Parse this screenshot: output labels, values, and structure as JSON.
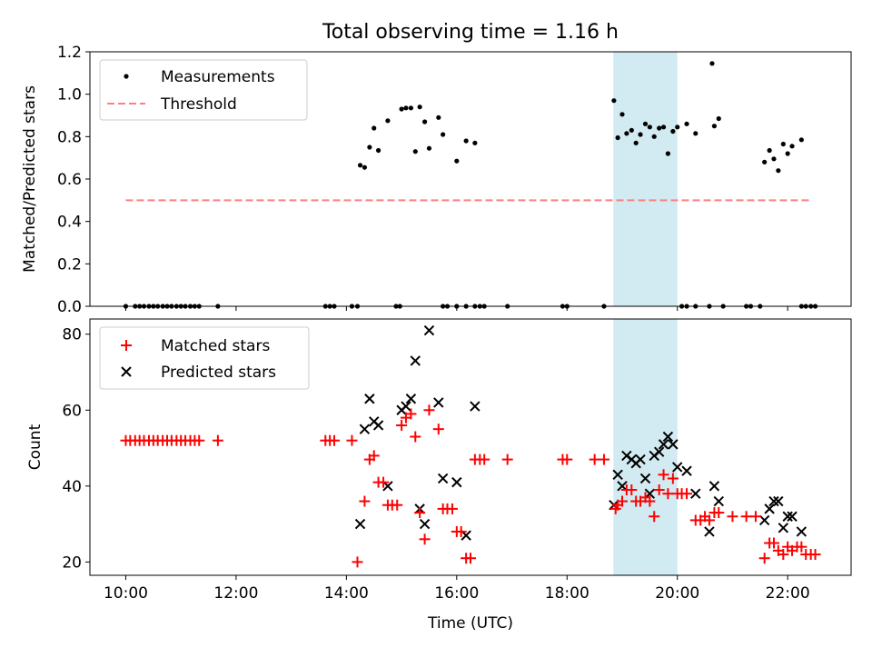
{
  "chart_data": [
    {
      "type": "scatter",
      "title": "Total observing time = 1.16 h",
      "xlabel": "",
      "ylabel": "Matched/Predicted stars",
      "xlim": [
        9.35,
        23.15
      ],
      "ylim": [
        0,
        1.2
      ],
      "yticks": [
        "0.0",
        "0.2",
        "0.4",
        "0.6",
        "0.8",
        "1.0",
        "1.2"
      ],
      "ytick_values": [
        0,
        0.2,
        0.4,
        0.6,
        0.8,
        1.0,
        1.2
      ],
      "xtick_values": [
        10,
        12,
        14,
        16,
        18,
        20,
        22
      ],
      "shaded_span": [
        18.84,
        20.0
      ],
      "shade_color": "#add8e6",
      "legend": {
        "position": "upper-left",
        "entries": [
          "Measurements",
          "Threshold"
        ]
      },
      "series": [
        {
          "name": "Measurements",
          "color": "#000000",
          "marker": "dot",
          "points": [
            [
              10.0,
              0
            ],
            [
              10.17,
              0
            ],
            [
              10.25,
              0
            ],
            [
              10.33,
              0
            ],
            [
              10.42,
              0
            ],
            [
              10.5,
              0
            ],
            [
              10.58,
              0
            ],
            [
              10.67,
              0
            ],
            [
              10.75,
              0
            ],
            [
              10.83,
              0
            ],
            [
              10.92,
              0
            ],
            [
              11.0,
              0
            ],
            [
              11.08,
              0
            ],
            [
              11.17,
              0
            ],
            [
              11.25,
              0
            ],
            [
              11.33,
              0
            ],
            [
              11.67,
              0
            ],
            [
              13.62,
              0
            ],
            [
              13.7,
              0
            ],
            [
              13.78,
              0
            ],
            [
              14.1,
              0
            ],
            [
              14.2,
              0
            ],
            [
              14.25,
              0.665
            ],
            [
              14.33,
              0.655
            ],
            [
              14.42,
              0.75
            ],
            [
              14.5,
              0.84
            ],
            [
              14.58,
              0.735
            ],
            [
              14.75,
              0.875
            ],
            [
              14.9,
              0
            ],
            [
              14.97,
              0
            ],
            [
              15.0,
              0.93
            ],
            [
              15.08,
              0.935
            ],
            [
              15.17,
              0.935
            ],
            [
              15.25,
              0.73
            ],
            [
              15.33,
              0.94
            ],
            [
              15.42,
              0.87
            ],
            [
              15.5,
              0.745
            ],
            [
              15.67,
              0.89
            ],
            [
              15.75,
              0.81
            ],
            [
              15.75,
              0
            ],
            [
              15.83,
              0
            ],
            [
              16.0,
              0.685
            ],
            [
              16.0,
              0
            ],
            [
              16.17,
              0.78
            ],
            [
              16.17,
              0
            ],
            [
              16.33,
              0.77
            ],
            [
              16.33,
              0
            ],
            [
              16.42,
              0
            ],
            [
              16.5,
              0
            ],
            [
              16.92,
              0
            ],
            [
              17.92,
              0
            ],
            [
              18.0,
              0
            ],
            [
              18.67,
              0
            ],
            [
              18.85,
              0.97
            ],
            [
              18.92,
              0.795
            ],
            [
              19.0,
              0.905
            ],
            [
              19.08,
              0.815
            ],
            [
              19.17,
              0.83
            ],
            [
              19.25,
              0.77
            ],
            [
              19.33,
              0.81
            ],
            [
              19.42,
              0.86
            ],
            [
              19.5,
              0.845
            ],
            [
              19.58,
              0.8
            ],
            [
              19.67,
              0.84
            ],
            [
              19.75,
              0.845
            ],
            [
              19.83,
              0.72
            ],
            [
              19.92,
              0.825
            ],
            [
              20.0,
              0.845
            ],
            [
              20.08,
              0
            ],
            [
              20.17,
              0.86
            ],
            [
              20.17,
              0
            ],
            [
              20.33,
              0.815
            ],
            [
              20.33,
              0
            ],
            [
              20.58,
              0
            ],
            [
              20.63,
              1.145
            ],
            [
              20.67,
              0.85
            ],
            [
              20.75,
              0.885
            ],
            [
              20.83,
              0
            ],
            [
              21.25,
              0
            ],
            [
              21.33,
              0
            ],
            [
              21.5,
              0
            ],
            [
              21.58,
              0.68
            ],
            [
              21.67,
              0.735
            ],
            [
              21.75,
              0.695
            ],
            [
              21.83,
              0.64
            ],
            [
              21.92,
              0.765
            ],
            [
              22.0,
              0.72
            ],
            [
              22.08,
              0.755
            ],
            [
              22.25,
              0.785
            ],
            [
              22.25,
              0
            ],
            [
              22.33,
              0
            ],
            [
              22.42,
              0
            ],
            [
              22.5,
              0
            ]
          ]
        },
        {
          "name": "Threshold",
          "color": "#ff7f7f",
          "marker": "dashed-line",
          "points": [
            [
              10.0,
              0.5
            ],
            [
              22.42,
              0.5
            ]
          ]
        }
      ]
    },
    {
      "type": "scatter",
      "title": "",
      "xlabel": "Time (UTC)",
      "ylabel": "Count",
      "xlim": [
        9.35,
        23.15
      ],
      "ylim": [
        16.5,
        84
      ],
      "yticks": [
        "20",
        "40",
        "60",
        "80"
      ],
      "ytick_values": [
        20,
        40,
        60,
        80
      ],
      "xticks": [
        "10:00",
        "12:00",
        "14:00",
        "16:00",
        "18:00",
        "20:00",
        "22:00"
      ],
      "xtick_values": [
        10,
        12,
        14,
        16,
        18,
        20,
        22
      ],
      "shaded_span": [
        18.84,
        20.0
      ],
      "shade_color": "#add8e6",
      "legend": {
        "position": "upper-left",
        "entries": [
          "Matched stars",
          "Predicted stars"
        ]
      },
      "series": [
        {
          "name": "Matched stars",
          "color": "#ff0000",
          "marker": "plus",
          "points": [
            [
              10.0,
              52
            ],
            [
              10.08,
              52
            ],
            [
              10.17,
              52
            ],
            [
              10.25,
              52
            ],
            [
              10.33,
              52
            ],
            [
              10.42,
              52
            ],
            [
              10.5,
              52
            ],
            [
              10.58,
              52
            ],
            [
              10.67,
              52
            ],
            [
              10.75,
              52
            ],
            [
              10.83,
              52
            ],
            [
              10.92,
              52
            ],
            [
              11.0,
              52
            ],
            [
              11.08,
              52
            ],
            [
              11.17,
              52
            ],
            [
              11.25,
              52
            ],
            [
              11.33,
              52
            ],
            [
              11.67,
              52
            ],
            [
              13.62,
              52
            ],
            [
              13.7,
              52
            ],
            [
              13.78,
              52
            ],
            [
              14.1,
              52
            ],
            [
              14.2,
              20
            ],
            [
              14.33,
              36
            ],
            [
              14.42,
              47
            ],
            [
              14.5,
              48
            ],
            [
              14.58,
              41
            ],
            [
              14.67,
              41
            ],
            [
              14.75,
              35
            ],
            [
              14.83,
              35
            ],
            [
              14.92,
              35
            ],
            [
              15.0,
              56
            ],
            [
              15.08,
              58
            ],
            [
              15.17,
              59
            ],
            [
              15.25,
              53
            ],
            [
              15.33,
              33
            ],
            [
              15.42,
              26
            ],
            [
              15.5,
              60
            ],
            [
              15.67,
              55
            ],
            [
              15.75,
              34
            ],
            [
              15.83,
              34
            ],
            [
              15.92,
              34
            ],
            [
              16.0,
              28
            ],
            [
              16.08,
              28
            ],
            [
              16.17,
              21
            ],
            [
              16.25,
              21
            ],
            [
              16.33,
              47
            ],
            [
              16.42,
              47
            ],
            [
              16.5,
              47
            ],
            [
              16.92,
              47
            ],
            [
              17.92,
              47
            ],
            [
              18.0,
              47
            ],
            [
              18.5,
              47
            ],
            [
              18.67,
              47
            ],
            [
              18.88,
              34
            ],
            [
              18.92,
              35
            ],
            [
              19.0,
              36
            ],
            [
              19.08,
              39
            ],
            [
              19.17,
              39
            ],
            [
              19.25,
              36
            ],
            [
              19.33,
              36
            ],
            [
              19.42,
              37
            ],
            [
              19.5,
              36
            ],
            [
              19.58,
              32
            ],
            [
              19.67,
              39
            ],
            [
              19.75,
              43
            ],
            [
              19.83,
              38
            ],
            [
              19.92,
              42
            ],
            [
              20.0,
              38
            ],
            [
              20.08,
              38
            ],
            [
              20.17,
              38
            ],
            [
              20.33,
              31
            ],
            [
              20.42,
              31
            ],
            [
              20.5,
              32
            ],
            [
              20.58,
              31
            ],
            [
              20.67,
              33
            ],
            [
              20.75,
              33
            ],
            [
              21.0,
              32
            ],
            [
              21.25,
              32
            ],
            [
              21.42,
              32
            ],
            [
              21.58,
              21
            ],
            [
              21.67,
              25
            ],
            [
              21.75,
              25
            ],
            [
              21.83,
              23
            ],
            [
              21.92,
              22
            ],
            [
              22.0,
              24
            ],
            [
              22.08,
              23
            ],
            [
              22.17,
              24
            ],
            [
              22.25,
              24
            ],
            [
              22.33,
              22
            ],
            [
              22.42,
              22
            ],
            [
              22.5,
              22
            ]
          ]
        },
        {
          "name": "Predicted stars",
          "color": "#000000",
          "marker": "x",
          "points": [
            [
              14.25,
              30
            ],
            [
              14.33,
              55
            ],
            [
              14.42,
              63
            ],
            [
              14.5,
              57
            ],
            [
              14.58,
              56
            ],
            [
              14.75,
              40
            ],
            [
              15.0,
              60
            ],
            [
              15.08,
              61
            ],
            [
              15.17,
              63
            ],
            [
              15.25,
              73
            ],
            [
              15.33,
              34
            ],
            [
              15.42,
              30
            ],
            [
              15.5,
              81
            ],
            [
              15.67,
              62
            ],
            [
              15.75,
              42
            ],
            [
              16.0,
              41
            ],
            [
              16.17,
              27
            ],
            [
              16.33,
              61
            ],
            [
              18.85,
              35
            ],
            [
              18.92,
              43
            ],
            [
              19.0,
              40
            ],
            [
              19.08,
              48
            ],
            [
              19.17,
              47
            ],
            [
              19.25,
              46
            ],
            [
              19.33,
              47
            ],
            [
              19.42,
              42
            ],
            [
              19.5,
              38
            ],
            [
              19.58,
              48
            ],
            [
              19.67,
              49
            ],
            [
              19.75,
              51
            ],
            [
              19.83,
              53
            ],
            [
              19.92,
              51
            ],
            [
              20.0,
              45
            ],
            [
              20.17,
              44
            ],
            [
              20.33,
              38
            ],
            [
              20.58,
              28
            ],
            [
              20.67,
              40
            ],
            [
              20.75,
              36
            ],
            [
              21.58,
              31
            ],
            [
              21.67,
              34
            ],
            [
              21.75,
              36
            ],
            [
              21.83,
              36
            ],
            [
              21.92,
              29
            ],
            [
              22.0,
              32
            ],
            [
              22.08,
              32
            ],
            [
              22.25,
              28
            ]
          ]
        }
      ]
    }
  ]
}
